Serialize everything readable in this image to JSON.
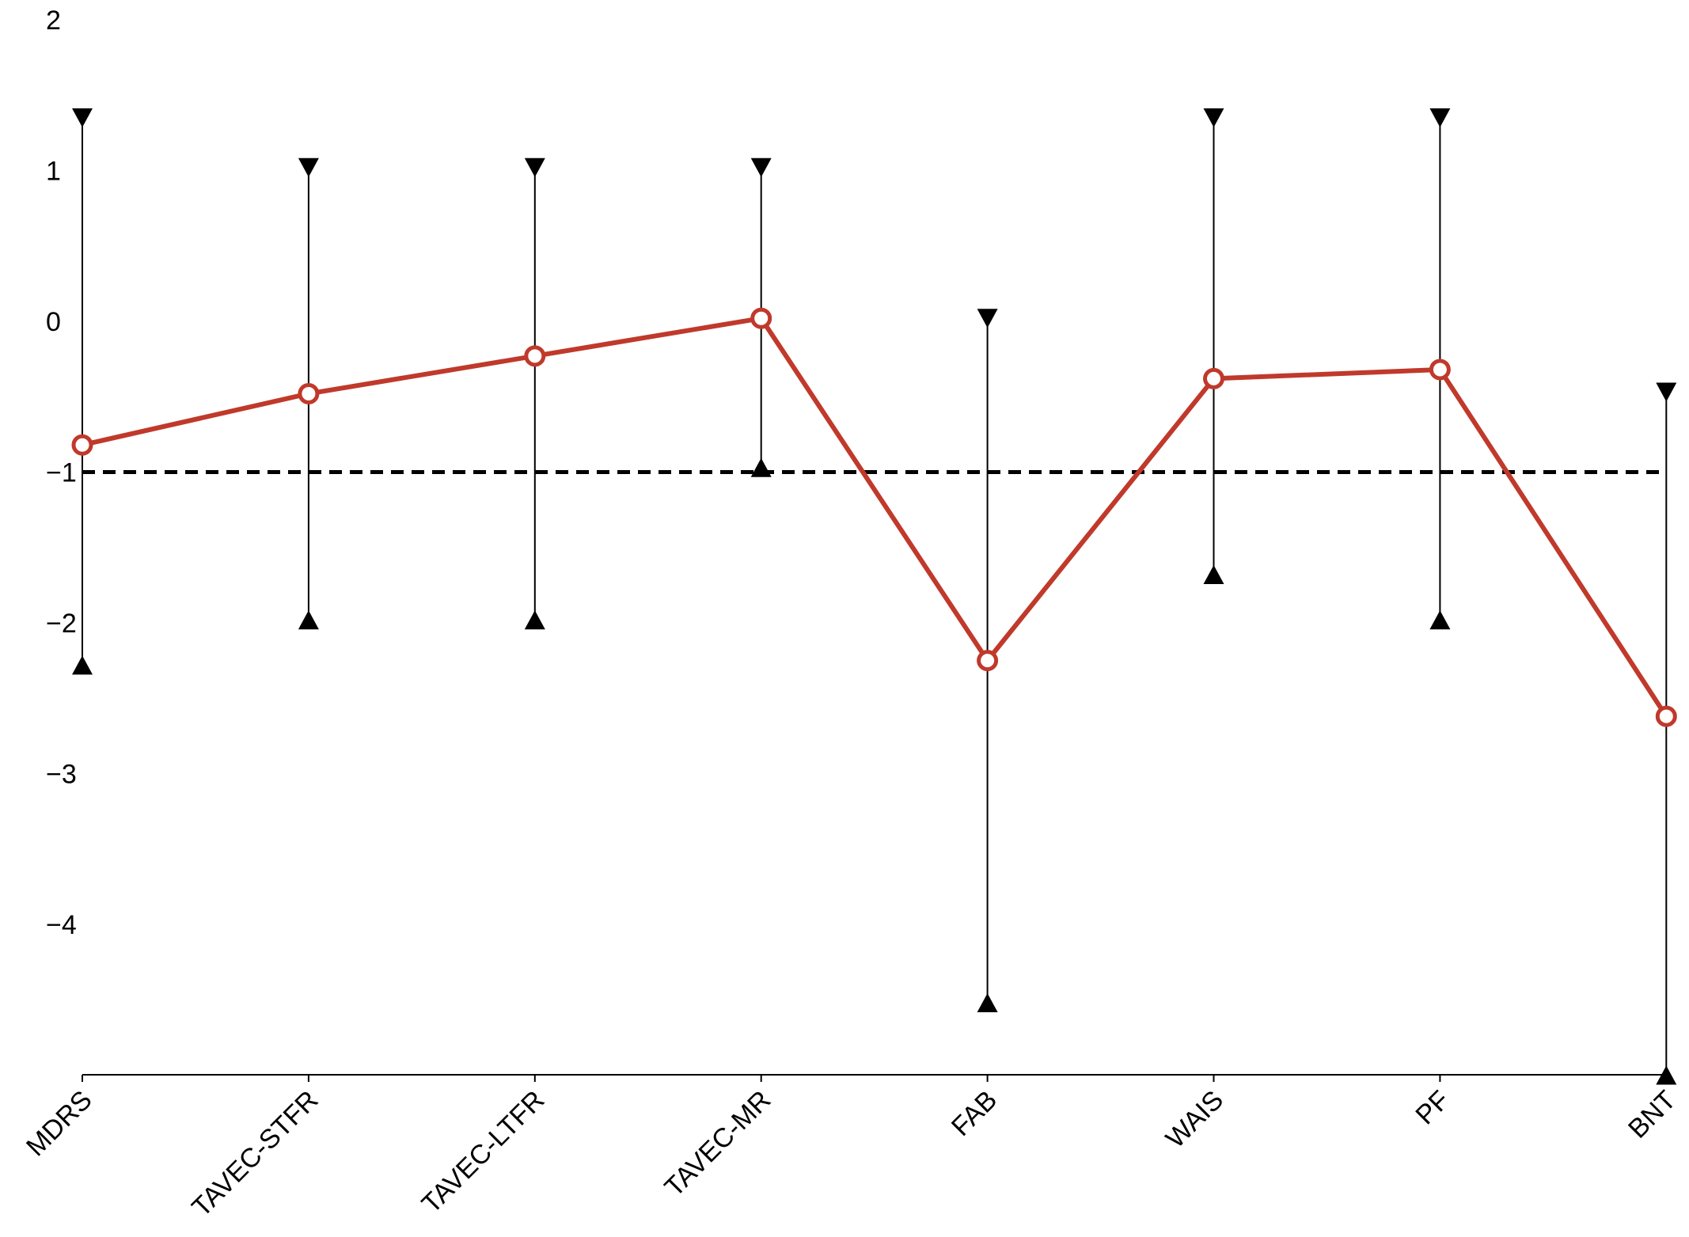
{
  "chart_data": {
    "type": "line",
    "categories": [
      "MDRS",
      "TAVEC-STFR",
      "TAVEC-LTFR",
      "TAVEC-MR",
      "FAB",
      "WAIS",
      "PF",
      "BNT"
    ],
    "series": [
      {
        "values": [
          -0.82,
          -0.48,
          -0.23,
          0.02,
          -2.25,
          -0.38,
          -0.32,
          -2.62
        ]
      }
    ],
    "error_bars": {
      "upper": [
        1.35,
        1.02,
        1.02,
        1.02,
        0.02,
        1.35,
        1.35,
        -0.47
      ],
      "lower": [
        -2.28,
        -1.98,
        -1.98,
        -0.97,
        -4.52,
        -1.68,
        -1.98,
        -5.0
      ]
    },
    "reference_line": {
      "y": -1,
      "style": "dashed"
    },
    "y_ticks": [
      "2",
      "1",
      "0",
      "−1",
      "−2",
      "−3",
      "−4"
    ],
    "ylim": [
      -5,
      2
    ],
    "xlabel": "",
    "ylabel": "",
    "grid": false,
    "colors": {
      "series": "#c0392b",
      "bars": "#000000",
      "axis": "#000000"
    }
  }
}
